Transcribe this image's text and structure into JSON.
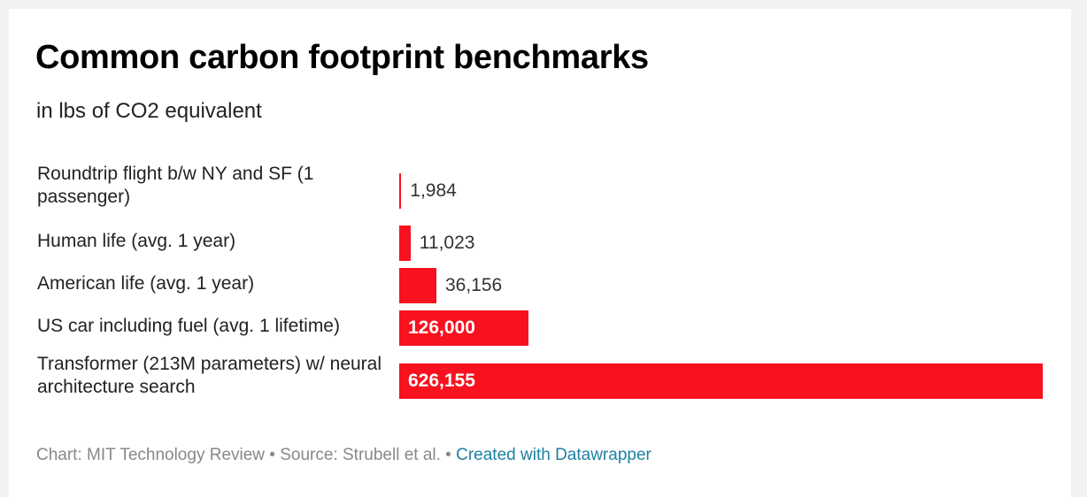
{
  "chart_data": {
    "type": "bar",
    "orientation": "horizontal",
    "title": "Common carbon footprint benchmarks",
    "subtitle": "in lbs of CO2 equivalent",
    "categories": [
      "Roundtrip flight b/w NY and SF (1 passenger)",
      "Human life (avg. 1 year)",
      "American life (avg. 1 year)",
      "US car including fuel (avg. 1 lifetime)",
      "Transformer (213M parameters) w/ neural architecture search"
    ],
    "values": [
      1984,
      11023,
      36156,
      126000,
      626155
    ],
    "value_labels": [
      "1,984",
      "11,023",
      "36,156",
      "126,000",
      "626,155"
    ],
    "xlim": [
      0,
      626155
    ],
    "grid": false,
    "legend": "none",
    "bar_color": "#f8111e"
  },
  "footer": {
    "chart_credit": "Chart: MIT Technology Review",
    "separator": " • ",
    "source": "Source: Strubell et al.",
    "link_text": "Created with Datawrapper"
  },
  "colors": {
    "bar": "#f8111e",
    "link": "#1d81a2",
    "muted": "#888888"
  }
}
